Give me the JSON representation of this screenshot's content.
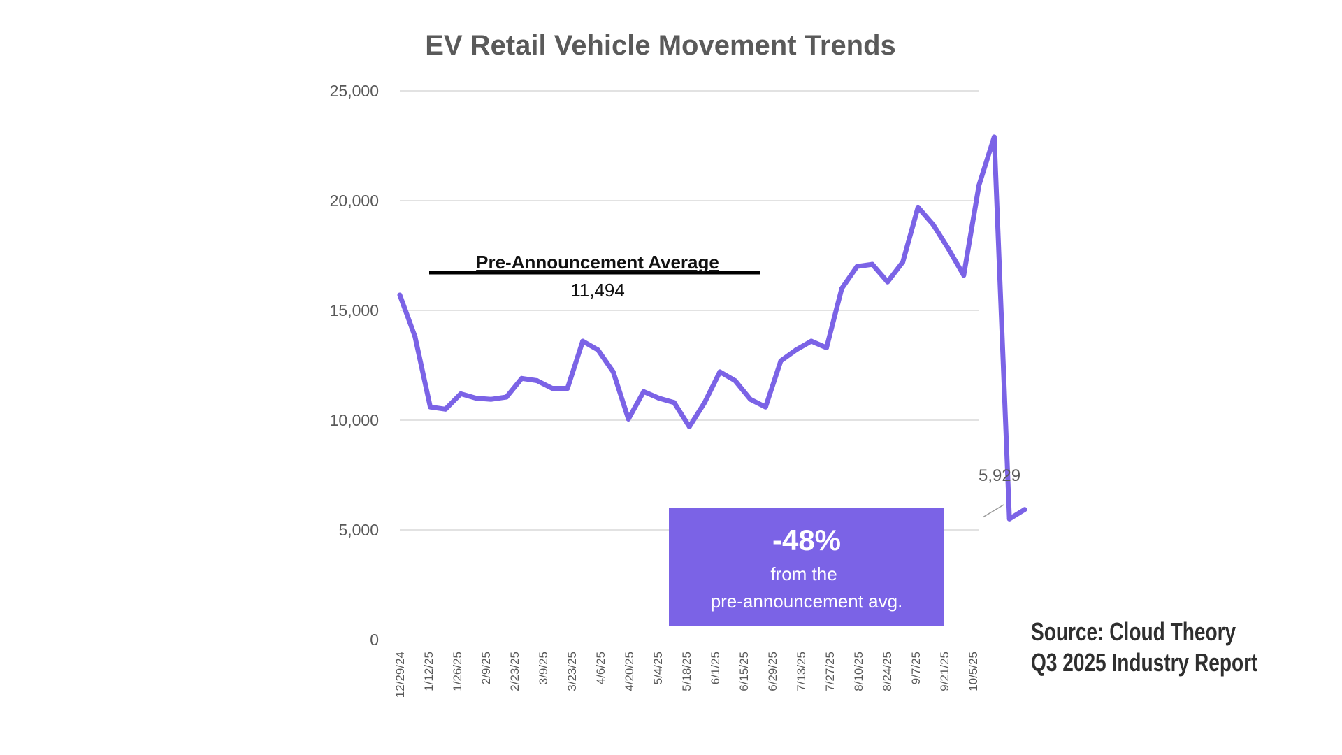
{
  "colors": {
    "line": "#7b63e6",
    "callout_bg": "#7b63e6"
  },
  "chart_data": {
    "type": "line",
    "title": "EV Retail Vehicle Movement Trends",
    "ylim": [
      0,
      25000
    ],
    "y_ticks": [
      "25,000",
      "20,000",
      "15,000",
      "10,000",
      "5,000",
      "0"
    ],
    "y_tick_values": [
      25000,
      20000,
      15000,
      10000,
      5000,
      0
    ],
    "x_tick_labels": [
      "12/29/24",
      "1/12/25",
      "1/26/25",
      "2/9/25",
      "2/23/25",
      "3/9/25",
      "3/23/25",
      "4/6/25",
      "4/20/25",
      "5/4/25",
      "5/18/25",
      "6/1/25",
      "6/15/25",
      "6/29/25",
      "7/13/25",
      "7/27/25",
      "8/10/25",
      "8/24/25",
      "9/7/25",
      "9/21/25",
      "10/5/25"
    ],
    "grid": true,
    "series": [
      {
        "values": [
          15700,
          13800,
          10600,
          10500,
          11200,
          11000,
          10950,
          11050,
          11900,
          11800,
          11450,
          11450,
          13600,
          13200,
          12200,
          10050,
          11300,
          11000,
          10800,
          9700,
          10800,
          12200,
          11800,
          10950,
          10600,
          12700,
          13200,
          13600,
          13300,
          16000,
          17000,
          17100,
          16300,
          17200,
          19700,
          18900,
          17800,
          16600,
          20700,
          22900,
          5500,
          5929
        ]
      }
    ],
    "annotations": {
      "average": {
        "label": "Pre-Announcement Average",
        "value_label": "11,494",
        "value": 11494
      },
      "end_label": "5,929",
      "callout": {
        "big": "-48%",
        "line1": "from the",
        "line2": "pre-announcement avg."
      }
    }
  },
  "source": {
    "line1": "Source: Cloud Theory",
    "line2": "Q3 2025 Industry Report"
  }
}
